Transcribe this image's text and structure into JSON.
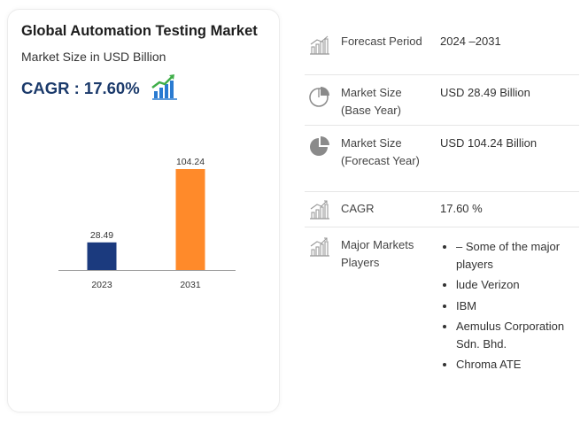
{
  "card": {
    "title": "Global Automation Testing Market",
    "subtitle": "Market Size in USD Billion",
    "cagr": "CAGR : 17.60%"
  },
  "colors": {
    "bar_2023": "#1b3a7e",
    "bar_2031": "#ff8a2a",
    "cagr_text": "#1b3a6b",
    "icon_gray": "#9a9a9a"
  },
  "chart_data": {
    "type": "bar",
    "categories": [
      "2023",
      "2031"
    ],
    "values": [
      28.49,
      104.24
    ],
    "data_labels": [
      "28.49",
      "104.24"
    ],
    "title": "",
    "xlabel": "",
    "ylabel": "",
    "ylim": [
      0,
      120
    ],
    "grid": false,
    "legend": "none"
  },
  "details": {
    "rows": [
      {
        "icon": "bar-chart-icon",
        "label": "Forecast Period",
        "value": "2024 –2031"
      },
      {
        "icon": "pie-chart-icon",
        "label": "Market Size (Base Year)",
        "value": "USD 28.49 Billion"
      },
      {
        "icon": "pie-chart-filled-icon",
        "label": "Market Size (Forecast Year)",
        "value": "USD 104.24 Billion"
      },
      {
        "icon": "growth-chart-icon",
        "label": "CAGR",
        "value": "17.60 %"
      },
      {
        "icon": "growth-chart-icon",
        "label": "Major Markets Players",
        "players": [
          "– Some of the major players",
          "lude Verizon",
          "IBM",
          "Aemulus Corporation Sdn. Bhd.",
          "Chroma ATE"
        ]
      }
    ]
  }
}
